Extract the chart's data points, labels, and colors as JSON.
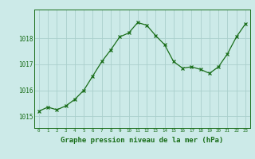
{
  "x": [
    0,
    1,
    2,
    3,
    4,
    5,
    6,
    7,
    8,
    9,
    10,
    11,
    12,
    13,
    14,
    15,
    16,
    17,
    18,
    19,
    20,
    21,
    22,
    23
  ],
  "y": [
    1015.2,
    1015.35,
    1015.25,
    1015.4,
    1015.65,
    1016.0,
    1016.55,
    1017.1,
    1017.55,
    1018.05,
    1018.2,
    1018.6,
    1018.5,
    1018.1,
    1017.75,
    1017.1,
    1016.85,
    1016.9,
    1016.8,
    1016.65,
    1016.9,
    1017.4,
    1018.05,
    1018.55
  ],
  "line_color": "#1a6e1a",
  "marker_color": "#1a6e1a",
  "bg_color": "#cceae8",
  "grid_color": "#aacfcc",
  "xlabel": "Graphe pression niveau de la mer (hPa)",
  "xlabel_fontsize": 6.5,
  "ytick_labels": [
    1015,
    1016,
    1017,
    1018
  ],
  "ylim": [
    1014.55,
    1019.1
  ],
  "xlim": [
    -0.5,
    23.5
  ],
  "tick_color": "#1a6e1a",
  "spine_color": "#1a6e1a"
}
